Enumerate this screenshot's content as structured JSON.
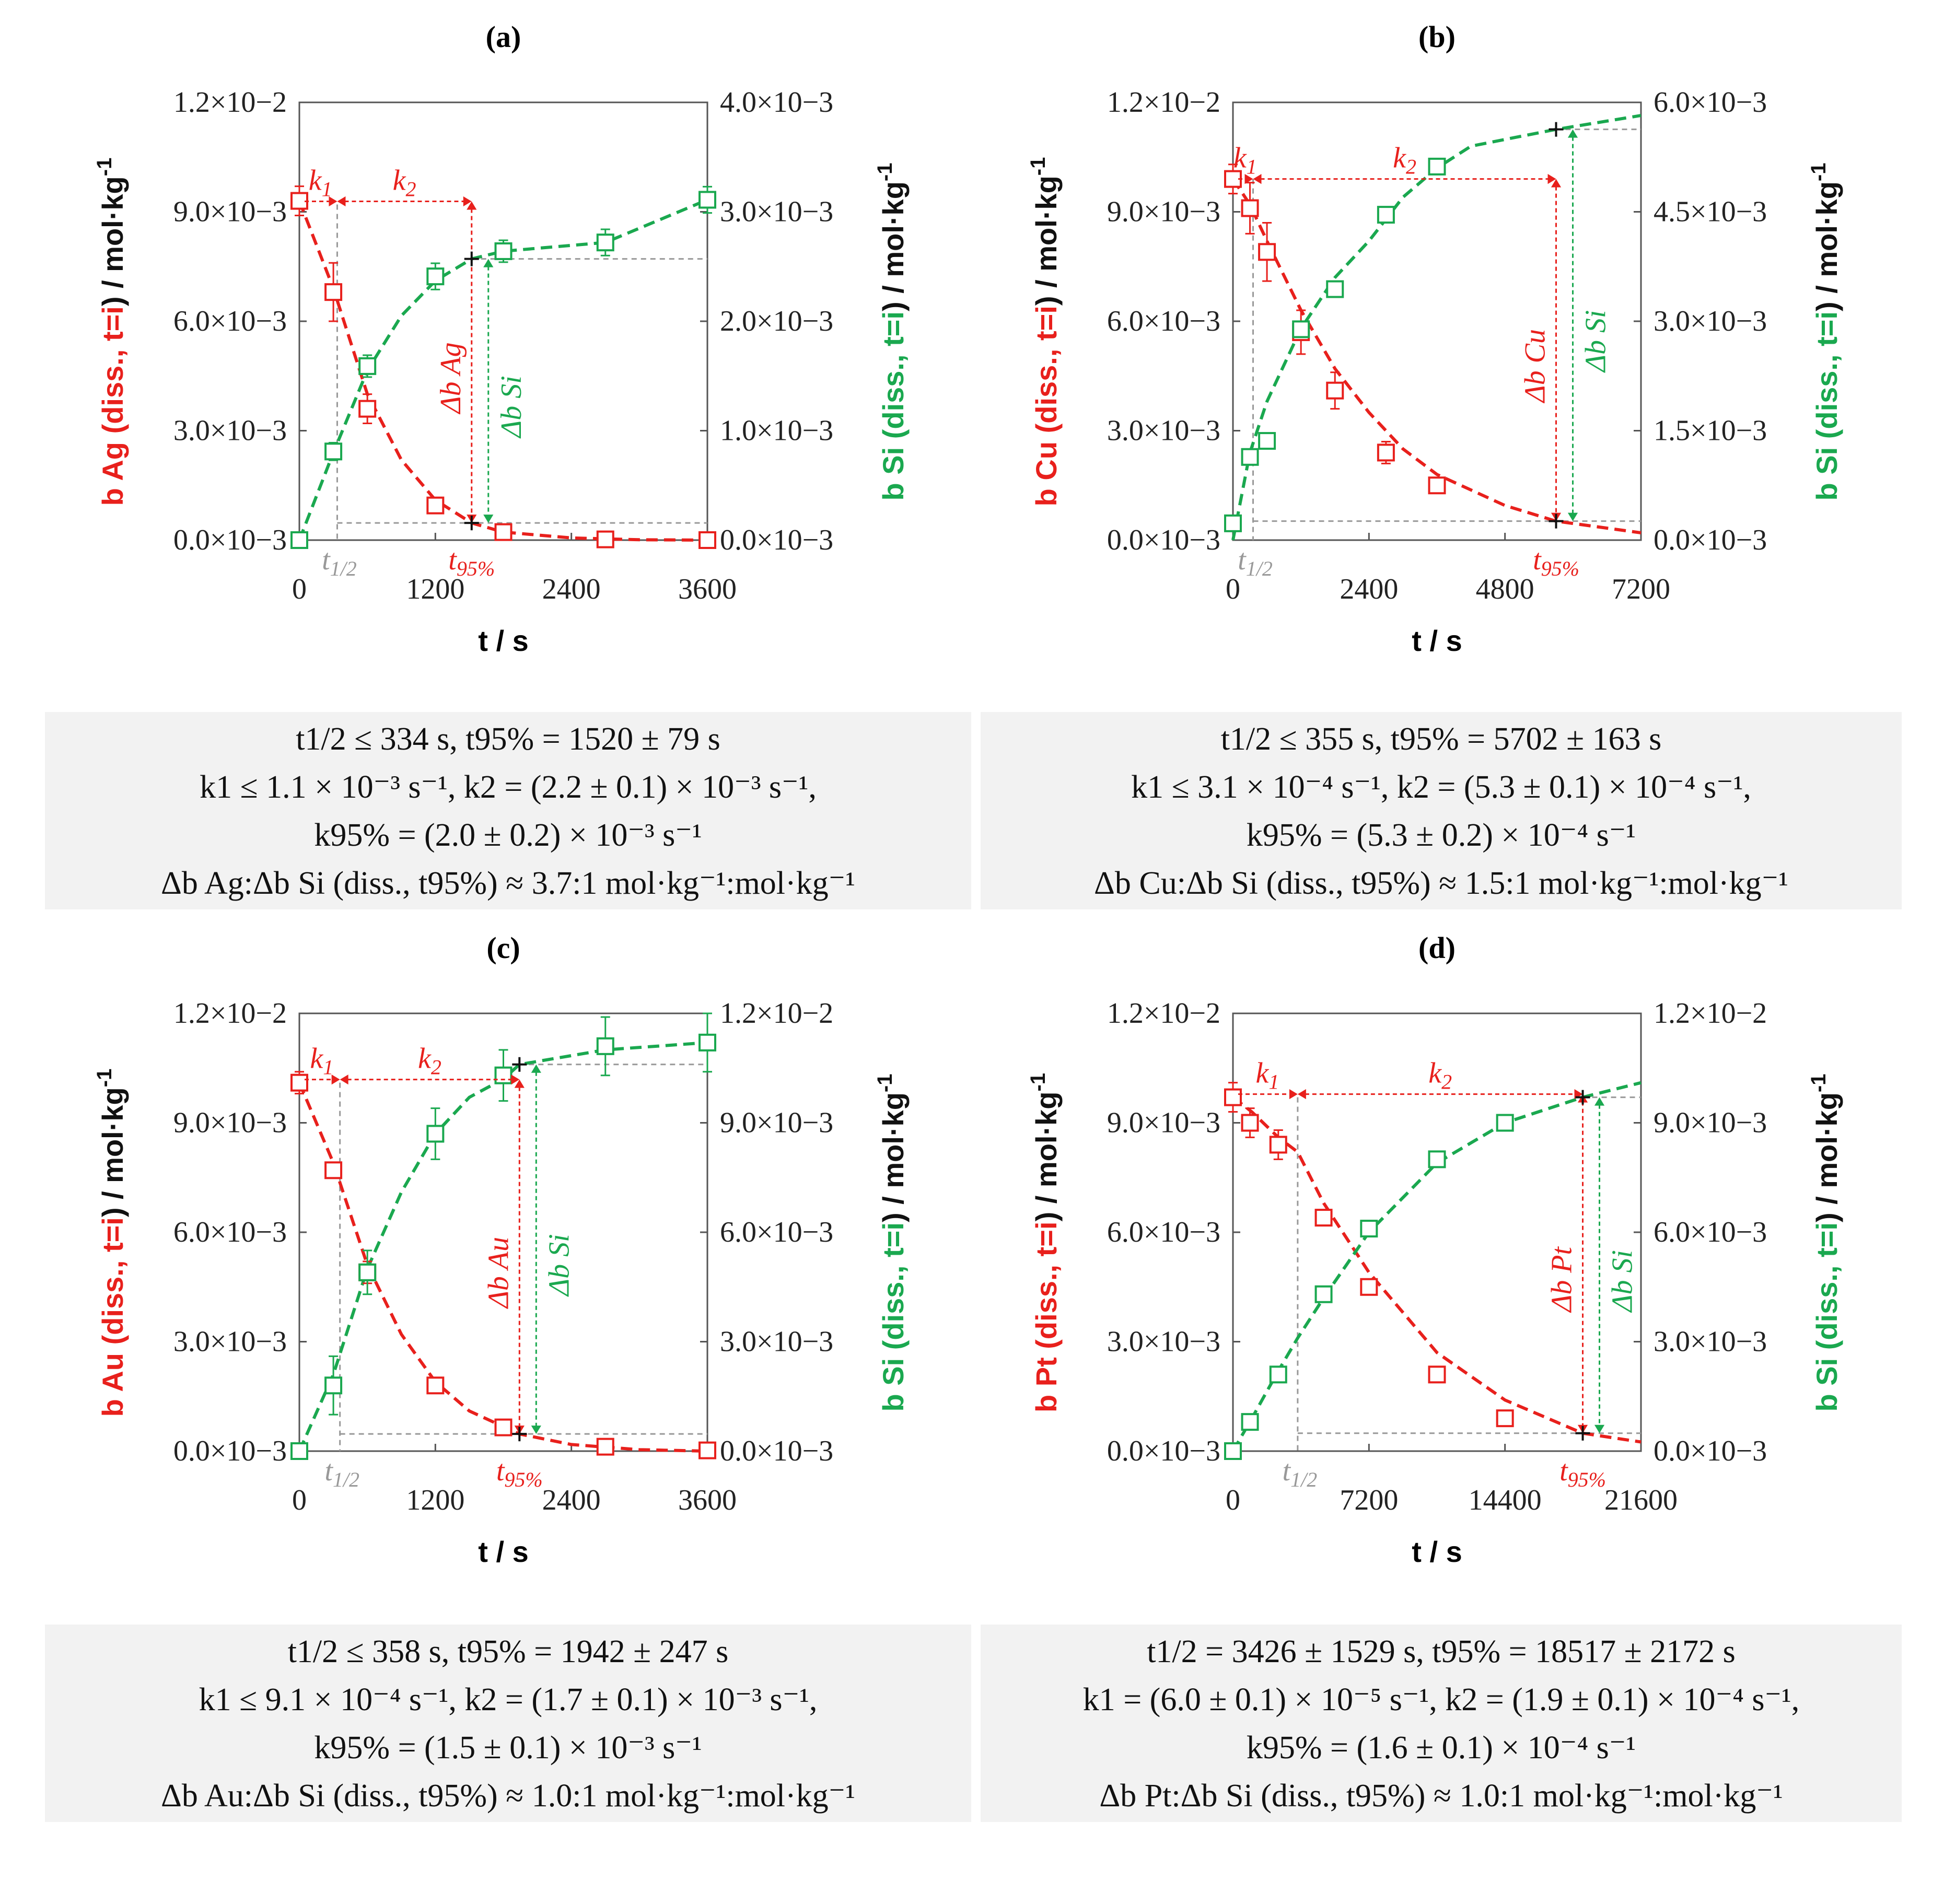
{
  "colors": {
    "metal": "#e8201c",
    "si": "#1aa84f",
    "ref": "#999999",
    "box": "#f2f2f2"
  },
  "panels": [
    {
      "label": "(a)",
      "xlabel": "t / s",
      "ylabel_left": [
        "b Ag (diss., ",
        "t=i",
        ") / mol·kg",
        "-1"
      ],
      "ylabel_right": [
        "b Si (diss., ",
        "t=i",
        ") / mol·kg",
        "-1"
      ],
      "metal_delta": "Δb Ag",
      "si_delta": "Δb Si",
      "k1": "k1",
      "k2": "k2",
      "thalf": "t1/2",
      "t95": "t95%",
      "info": [
        "t1/2 ≤ 334 s, t95% = 1520 ± 79 s",
        "k1 ≤ 1.1 × 10⁻³ s⁻¹, k2 = (2.2 ± 0.1) × 10⁻³ s⁻¹,",
        "k95% = (2.0 ± 0.2) × 10⁻³ s⁻¹",
        "Δb Ag:Δb Si (diss., t95%) ≈ 3.7:1 mol·kg⁻¹:mol·kg⁻¹"
      ]
    },
    {
      "label": "(b)",
      "xlabel": "t / s",
      "ylabel_left": [
        "b Cu (diss., ",
        "t=i",
        ") / mol·kg",
        "-1"
      ],
      "ylabel_right": [
        "b Si (diss., ",
        "t=i",
        ") / mol·kg",
        "-1"
      ],
      "metal_delta": "Δb Cu",
      "si_delta": "Δb Si",
      "k1": "k1",
      "k2": "k2",
      "thalf": "t1/2",
      "t95": "t95%",
      "info": [
        "t1/2 ≤ 355 s, t95% = 5702 ± 163 s",
        "k1 ≤ 3.1 × 10⁻⁴ s⁻¹, k2 = (5.3 ± 0.1) × 10⁻⁴ s⁻¹,",
        "k95% = (5.3 ± 0.2) × 10⁻⁴ s⁻¹",
        "Δb Cu:Δb Si (diss., t95%) ≈ 1.5:1 mol·kg⁻¹:mol·kg⁻¹"
      ]
    },
    {
      "label": "(c)",
      "xlabel": "t / s",
      "ylabel_left": [
        "b Au (diss., ",
        "t=i",
        ") / mol·kg",
        "-1"
      ],
      "ylabel_right": [
        "b Si (diss., ",
        "t=i",
        ") / mol·kg",
        "-1"
      ],
      "metal_delta": "Δb Au",
      "si_delta": "Δb Si",
      "k1": "k1",
      "k2": "k2",
      "thalf": "t1/2",
      "t95": "t95%",
      "info": [
        "t1/2 ≤ 358 s, t95% = 1942 ± 247 s",
        "k1 ≤ 9.1 × 10⁻⁴ s⁻¹, k2 = (1.7 ± 0.1) × 10⁻³ s⁻¹,",
        "k95% = (1.5 ± 0.1) × 10⁻³ s⁻¹",
        "Δb Au:Δb Si (diss., t95%) ≈ 1.0:1 mol·kg⁻¹:mol·kg⁻¹"
      ]
    },
    {
      "label": "(d)",
      "xlabel": "t / s",
      "ylabel_left": [
        "b Pt (diss., ",
        "t=i",
        ") / mol·kg",
        "-1"
      ],
      "ylabel_right": [
        "b Si (diss., ",
        "t=i",
        ") / mol·kg",
        "-1"
      ],
      "metal_delta": "Δb Pt",
      "si_delta": "Δb Si",
      "k1": "k1",
      "k2": "k2",
      "thalf": "t1/2",
      "t95": "t95%",
      "info": [
        "t1/2 = 3426 ± 1529 s, t95% = 18517 ± 2172 s",
        "k1 = (6.0 ± 0.1) × 10⁻⁵ s⁻¹, k2 = (1.9 ± 0.1) × 10⁻⁴ s⁻¹,",
        "k95% = (1.6 ± 0.1) × 10⁻⁴ s⁻¹",
        "Δb Pt:Δb Si (diss., t95%) ≈ 1.0:1 mol·kg⁻¹:mol·kg⁻¹"
      ]
    }
  ],
  "chart_data": [
    {
      "type": "scatter",
      "title": "(a)",
      "xlabel": "t / s",
      "ylabel": "b Ag (diss., t=i) / mol·kg-1",
      "y2label": "b Si (diss., t=i) / mol·kg-1",
      "xlim": [
        0,
        3600
      ],
      "ylim": [
        0,
        0.012
      ],
      "y2lim": [
        0,
        0.004
      ],
      "xticks": [
        "0",
        "1200",
        "2400",
        "3600"
      ],
      "xtick_values": [
        0,
        1200,
        2400,
        3600
      ],
      "yticks": [
        "0.0×10−3",
        "3.0×10−3",
        "6.0×10−3",
        "9.0×10−3",
        "1.2×10−2"
      ],
      "y2ticks": [
        "0.0×10−3",
        "1.0×10−3",
        "2.0×10−3",
        "3.0×10−3",
        "4.0×10−3"
      ],
      "t_half": 334,
      "t95": 1520,
      "series": [
        {
          "name": "Ag",
          "axis": "left",
          "x": [
            0,
            300,
            600,
            1200,
            1800,
            2700,
            3600
          ],
          "y": [
            0.0093,
            0.0068,
            0.0036,
            0.00095,
            0.00022,
            2e-05,
            0.0
          ],
          "err": [
            0.0004,
            0.0008,
            0.0004,
            0.0002,
            8e-05,
            3e-05,
            2e-05
          ]
        },
        {
          "name": "Si",
          "axis": "right",
          "x": [
            0,
            300,
            600,
            1200,
            1800,
            2700,
            3600
          ],
          "y": [
            0.0,
            0.00081,
            0.00159,
            0.00241,
            0.00264,
            0.00272,
            0.00311
          ],
          "err": [
            2e-05,
            8e-05,
            0.0001,
            0.00012,
            0.0001,
            0.00012,
            0.00012
          ]
        }
      ],
      "fit_metal": [
        [
          0,
          0.0093
        ],
        [
          300,
          0.0069
        ],
        [
          600,
          0.004
        ],
        [
          900,
          0.0022
        ],
        [
          1200,
          0.0011
        ],
        [
          1520,
          0.00047
        ],
        [
          1800,
          0.00022
        ],
        [
          2400,
          6e-05
        ],
        [
          3000,
          1e-05
        ],
        [
          3600,
          0.0
        ]
      ],
      "fit_si": [
        [
          0,
          0.0
        ],
        [
          300,
          0.0008
        ],
        [
          600,
          0.00155
        ],
        [
          900,
          0.00205
        ],
        [
          1200,
          0.00237
        ],
        [
          1520,
          0.00257
        ],
        [
          1800,
          0.00264
        ],
        [
          2700,
          0.00272
        ],
        [
          3600,
          0.00311
        ]
      ],
      "k_arrow_y": 0.0092,
      "t95_y_metal": 0.00047,
      "t95_y_si": 0.00257
    },
    {
      "type": "scatter",
      "title": "(b)",
      "xlabel": "t / s",
      "ylabel": "b Cu (diss., t=i) / mol·kg-1",
      "y2label": "b Si (diss., t=i) / mol·kg-1",
      "xlim": [
        0,
        7200
      ],
      "ylim": [
        0,
        0.012
      ],
      "y2lim": [
        0,
        0.006
      ],
      "xticks": [
        "0",
        "2400",
        "4800",
        "7200"
      ],
      "xtick_values": [
        0,
        2400,
        4800,
        7200
      ],
      "yticks": [
        "0.0×10−3",
        "3.0×10−3",
        "6.0×10−3",
        "9.0×10−3",
        "1.2×10−2"
      ],
      "y2ticks": [
        "0.0×10−3",
        "1.5×10−3",
        "3.0×10−3",
        "4.5×10−3",
        "6.0×10−3"
      ],
      "t_half": 355,
      "t95": 5702,
      "series": [
        {
          "name": "Cu",
          "axis": "left",
          "x": [
            0,
            300,
            600,
            1200,
            1800,
            2700,
            3600
          ],
          "y": [
            0.0099,
            0.0091,
            0.0079,
            0.0057,
            0.0041,
            0.0024,
            0.0015
          ],
          "err": [
            0.0004,
            0.0007,
            0.0008,
            0.0006,
            0.0005,
            0.0003,
            0.0001
          ]
        },
        {
          "name": "Si",
          "axis": "right",
          "x": [
            0,
            300,
            600,
            1200,
            1800,
            2700,
            3600
          ],
          "y": [
            0.00023,
            0.00114,
            0.00136,
            0.00289,
            0.00344,
            0.00446,
            0.00512
          ],
          "err": [
            2e-05,
            8e-05,
            0.0001,
            0.0001,
            8e-05,
            8e-05,
            0.0001
          ]
        }
      ],
      "fit_metal": [
        [
          0,
          0.0099
        ],
        [
          300,
          0.0092
        ],
        [
          600,
          0.0082
        ],
        [
          1200,
          0.0063
        ],
        [
          1800,
          0.0047
        ],
        [
          2400,
          0.0035
        ],
        [
          3000,
          0.0025
        ],
        [
          3600,
          0.0018
        ],
        [
          4800,
          0.00095
        ],
        [
          5702,
          0.00052
        ],
        [
          7200,
          0.0002
        ]
      ],
      "fit_si": [
        [
          0,
          0.0
        ],
        [
          300,
          0.0012
        ],
        [
          600,
          0.0019
        ],
        [
          1200,
          0.0029
        ],
        [
          1800,
          0.0036
        ],
        [
          2400,
          0.0041
        ],
        [
          3000,
          0.0047
        ],
        [
          3600,
          0.0051
        ],
        [
          4200,
          0.0054
        ],
        [
          5702,
          0.00563
        ],
        [
          7200,
          0.00582
        ]
      ],
      "k_arrow_y": 0.0099,
      "t95_y_metal": 0.00052,
      "t95_y_si": 0.00563
    },
    {
      "type": "scatter",
      "title": "(c)",
      "xlabel": "t / s",
      "ylabel": "b Au (diss., t=i) / mol·kg-1",
      "y2label": "b Si (diss., t=i) / mol·kg-1",
      "xlim": [
        0,
        3600
      ],
      "ylim": [
        0,
        0.012
      ],
      "y2lim": [
        0,
        0.012
      ],
      "xticks": [
        "0",
        "1200",
        "2400",
        "3600"
      ],
      "xtick_values": [
        0,
        1200,
        2400,
        3600
      ],
      "yticks": [
        "0.0×10−3",
        "3.0×10−3",
        "6.0×10−3",
        "9.0×10−3",
        "1.2×10−2"
      ],
      "y2ticks": [
        "0.0×10−3",
        "3.0×10−3",
        "6.0×10−3",
        "9.0×10−3",
        "1.2×10−2"
      ],
      "t_half": 358,
      "t95": 1942,
      "series": [
        {
          "name": "Au",
          "axis": "left",
          "x": [
            0,
            300,
            600,
            1200,
            1800,
            2700,
            3600
          ],
          "y": [
            0.0101,
            0.0077,
            0.0049,
            0.0018,
            0.00065,
            0.00012,
            2e-05
          ],
          "err": [
            0.0003,
            0.0002,
            0.0003,
            0.0002,
            0.0002,
            8e-05,
            3e-05
          ]
        },
        {
          "name": "Si",
          "axis": "right",
          "x": [
            0,
            300,
            600,
            1200,
            1800,
            2700,
            3600
          ],
          "y": [
            0.0,
            0.0018,
            0.0049,
            0.0087,
            0.0103,
            0.0111,
            0.0112
          ],
          "err": [
            0.0001,
            0.0008,
            0.0006,
            0.0007,
            0.0007,
            0.0008,
            0.0008
          ]
        }
      ],
      "fit_metal": [
        [
          0,
          0.0101
        ],
        [
          300,
          0.0079
        ],
        [
          600,
          0.0051
        ],
        [
          900,
          0.0032
        ],
        [
          1200,
          0.0019
        ],
        [
          1500,
          0.0011
        ],
        [
          1942,
          0.00047
        ],
        [
          2400,
          0.00018
        ],
        [
          3000,
          4e-05
        ],
        [
          3600,
          0.0
        ]
      ],
      "fit_si": [
        [
          0,
          0.0
        ],
        [
          300,
          0.0021
        ],
        [
          600,
          0.005
        ],
        [
          900,
          0.0071
        ],
        [
          1200,
          0.0087
        ],
        [
          1500,
          0.0097
        ],
        [
          1800,
          0.0102
        ],
        [
          1942,
          0.0106
        ],
        [
          2700,
          0.011
        ],
        [
          3600,
          0.0112
        ]
      ],
      "k_arrow_y": 0.0101,
      "t95_y_metal": 0.00047,
      "t95_y_si": 0.0106
    },
    {
      "type": "scatter",
      "title": "(d)",
      "xlabel": "t / s",
      "ylabel": "b Pt (diss., t=i) / mol·kg-1",
      "y2label": "b Si (diss., t=i) / mol·kg-1",
      "xlim": [
        0,
        21600
      ],
      "ylim": [
        0,
        0.012
      ],
      "y2lim": [
        0,
        0.012
      ],
      "xticks": [
        "0",
        "7200",
        "14400",
        "21600"
      ],
      "xtick_values": [
        0,
        7200,
        14400,
        21600
      ],
      "yticks": [
        "0.0×10−3",
        "3.0×10−3",
        "6.0×10−3",
        "9.0×10−3",
        "1.2×10−2"
      ],
      "y2ticks": [
        "0.0×10−3",
        "3.0×10−3",
        "6.0×10−3",
        "9.0×10−3",
        "1.2×10−2"
      ],
      "t_half": 3426,
      "t95": 18517,
      "series": [
        {
          "name": "Pt",
          "axis": "left",
          "x": [
            0,
            900,
            2400,
            4800,
            7200,
            10800,
            14400
          ],
          "y": [
            0.0097,
            0.009,
            0.0084,
            0.0064,
            0.0045,
            0.0021,
            0.0009
          ],
          "err": [
            0.0004,
            0.0004,
            0.0004,
            0.0002,
            0.0002,
            0.0002,
            8e-05
          ]
        },
        {
          "name": "Si",
          "axis": "right",
          "x": [
            0,
            900,
            2400,
            4800,
            7200,
            10800,
            14400
          ],
          "y": [
            0.0,
            0.0008,
            0.0021,
            0.0043,
            0.0061,
            0.008,
            0.009
          ],
          "err": [
            0.0001,
            0.0001,
            0.0001,
            0.0001,
            0.0001,
            0.0001,
            0.0001
          ]
        }
      ],
      "fit_metal": [
        [
          0,
          0.0097
        ],
        [
          1000,
          0.0093
        ],
        [
          2400,
          0.0086
        ],
        [
          3426,
          0.0082
        ],
        [
          4800,
          0.0068
        ],
        [
          7200,
          0.0049
        ],
        [
          10800,
          0.0027
        ],
        [
          14400,
          0.0014
        ],
        [
          18517,
          0.00049
        ],
        [
          21600,
          0.00025
        ]
      ],
      "fit_si": [
        [
          0,
          0.0
        ],
        [
          1000,
          0.0009
        ],
        [
          2400,
          0.0022
        ],
        [
          3426,
          0.0031
        ],
        [
          4800,
          0.0042
        ],
        [
          7200,
          0.006
        ],
        [
          10800,
          0.0079
        ],
        [
          14400,
          0.009
        ],
        [
          18517,
          0.0097
        ],
        [
          21600,
          0.0101
        ]
      ],
      "k_arrow_y": 0.0097,
      "t95_y_metal": 0.00049,
      "t95_y_si": 0.0097
    }
  ]
}
